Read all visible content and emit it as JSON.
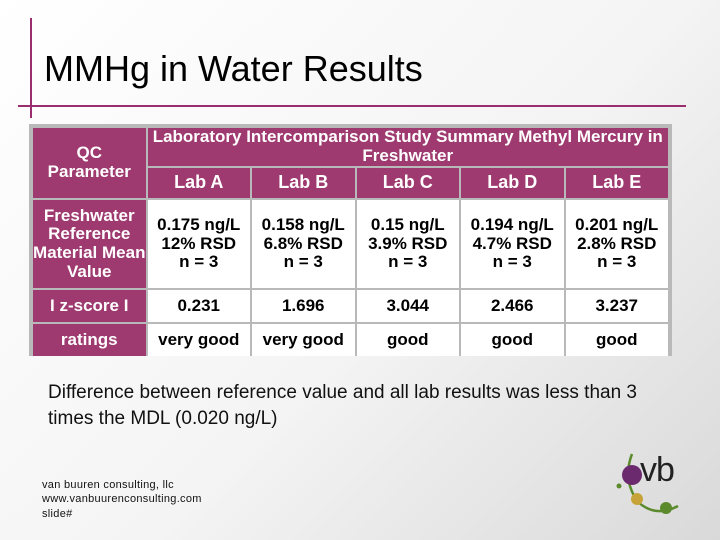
{
  "slide": {
    "title": "MMHg in Water Results",
    "body_text": "Difference between reference value and all lab results was less than 3 times the MDL (0.020 ng/L)",
    "footer": {
      "company": "van buuren consulting, llc",
      "website": "www.vanbuurenconsulting.com",
      "slide_number": "slide#"
    },
    "logo_text": "vb",
    "colors": {
      "accent": "#9e3a6f",
      "logo_purple": "#6b2a6e",
      "logo_green": "#5a8a2c",
      "logo_gold": "#c8a33a"
    }
  },
  "table": {
    "param_header": "QC Parameter",
    "summary_title": "Laboratory Intercomparison Study Summary Methyl Mercury in Freshwater",
    "labs": [
      "Lab A",
      "Lab B",
      "Lab C",
      "Lab D",
      "Lab E"
    ],
    "rows": [
      {
        "label": "Freshwater Reference Material Mean Value",
        "cells": [
          {
            "value": "0.175 ng/L",
            "rsd": "12% RSD",
            "n": "n = 3"
          },
          {
            "value": "0.158 ng/L",
            "rsd": "6.8% RSD",
            "n": "n = 3"
          },
          {
            "value": "0.15 ng/L",
            "rsd": "3.9% RSD",
            "n": "n = 3"
          },
          {
            "value": "0.194 ng/L",
            "rsd": "4.7% RSD",
            "n": "n = 3"
          },
          {
            "value": "0.201 ng/L",
            "rsd": "2.8% RSD",
            "n": "n = 3"
          }
        ]
      },
      {
        "label": "I z-score I",
        "cells": [
          "0.231",
          "1.696",
          "3.044",
          "2.466",
          "3.237"
        ]
      },
      {
        "label": "ratings",
        "cells": [
          "very good",
          "very good",
          "good",
          "good",
          "good"
        ]
      }
    ]
  }
}
